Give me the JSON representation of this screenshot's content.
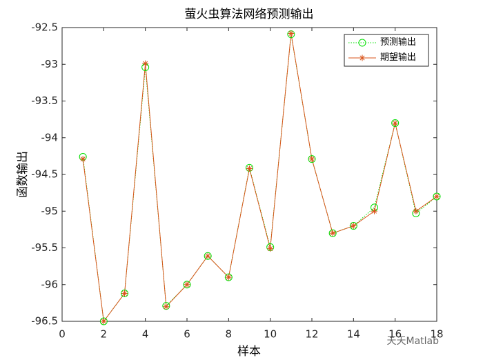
{
  "chart_data": {
    "type": "line",
    "title": "萤火虫算法网络预测输出",
    "x_label": "样本",
    "y_label": "函数输出",
    "x": [
      1,
      2,
      3,
      4,
      5,
      6,
      7,
      8,
      9,
      10,
      11,
      12,
      13,
      14,
      15,
      16,
      17,
      18
    ],
    "series": [
      {
        "name": "预测输出",
        "color": "#00e000",
        "marker": "circle",
        "line_style": "dotted",
        "values": [
          -94.26,
          -96.5,
          -96.12,
          -93.04,
          -96.29,
          -96.0,
          -95.61,
          -95.9,
          -94.41,
          -95.49,
          -92.59,
          -94.29,
          -95.3,
          -95.2,
          -94.95,
          -93.8,
          -95.03,
          -94.8
        ]
      },
      {
        "name": "期望输出",
        "color": "#d95319",
        "marker": "asterisk",
        "line_style": "solid",
        "values": [
          -94.29,
          -96.5,
          -96.12,
          -92.99,
          -96.3,
          -96.0,
          -95.61,
          -95.9,
          -94.42,
          -95.51,
          -92.58,
          -94.29,
          -95.3,
          -95.2,
          -95.0,
          -93.8,
          -95.0,
          -94.8
        ]
      }
    ],
    "xlim": [
      0,
      18
    ],
    "xticks": [
      0,
      2,
      4,
      6,
      8,
      10,
      12,
      14,
      16,
      18
    ],
    "ylim": [
      -96.5,
      -92.5
    ],
    "yticks": [
      -96.5,
      -96,
      -95.5,
      -95,
      -94.5,
      -94,
      -93.5,
      -93,
      -92.5
    ],
    "legend": "northeast"
  },
  "watermark": "天天Matlab"
}
